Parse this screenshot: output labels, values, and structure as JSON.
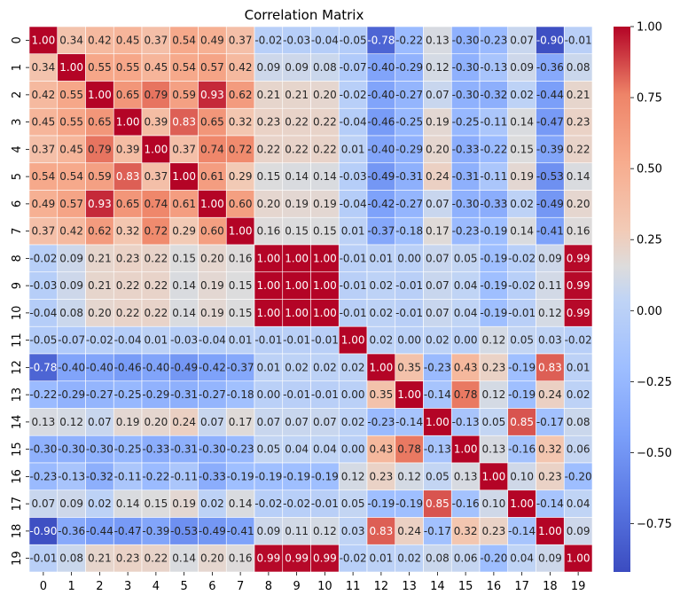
{
  "chart_data": {
    "type": "heatmap",
    "title": "Correlation Matrix",
    "xlabel": "",
    "ylabel": "",
    "labels": [
      "0",
      "1",
      "2",
      "3",
      "4",
      "5",
      "6",
      "7",
      "8",
      "9",
      "10",
      "11",
      "12",
      "13",
      "14",
      "15",
      "16",
      "17",
      "18",
      "19"
    ],
    "colormap": "coolwarm",
    "vmin": -0.92,
    "vmax": 1.0,
    "colorbar_ticks": [
      {
        "value": 1.0,
        "label": "1.00"
      },
      {
        "value": 0.75,
        "label": "0.75"
      },
      {
        "value": 0.5,
        "label": "0.50"
      },
      {
        "value": 0.25,
        "label": "0.25"
      },
      {
        "value": 0.0,
        "label": "0.00"
      },
      {
        "value": -0.25,
        "label": "−0.25"
      },
      {
        "value": -0.5,
        "label": "−0.50"
      },
      {
        "value": -0.75,
        "label": "−0.75"
      }
    ],
    "matrix": [
      [
        1.0,
        0.34,
        0.42,
        0.45,
        0.37,
        0.54,
        0.49,
        0.37,
        -0.02,
        -0.03,
        -0.04,
        -0.05,
        -0.78,
        -0.22,
        0.13,
        -0.3,
        -0.23,
        0.07,
        -0.9,
        -0.01
      ],
      [
        0.34,
        1.0,
        0.55,
        0.55,
        0.45,
        0.54,
        0.57,
        0.42,
        0.09,
        0.09,
        0.08,
        -0.07,
        -0.4,
        -0.29,
        0.12,
        -0.3,
        -0.13,
        0.09,
        -0.36,
        0.08
      ],
      [
        0.42,
        0.55,
        1.0,
        0.65,
        0.79,
        0.59,
        0.93,
        0.62,
        0.21,
        0.21,
        0.2,
        -0.02,
        -0.4,
        -0.27,
        0.07,
        -0.3,
        -0.32,
        0.02,
        -0.44,
        0.21
      ],
      [
        0.45,
        0.55,
        0.65,
        1.0,
        0.39,
        0.83,
        0.65,
        0.32,
        0.23,
        0.22,
        0.22,
        -0.04,
        -0.46,
        -0.25,
        0.19,
        -0.25,
        -0.11,
        0.14,
        -0.47,
        0.23
      ],
      [
        0.37,
        0.45,
        0.79,
        0.39,
        1.0,
        0.37,
        0.74,
        0.72,
        0.22,
        0.22,
        0.22,
        0.01,
        -0.4,
        -0.29,
        0.2,
        -0.33,
        -0.22,
        0.15,
        -0.39,
        0.22
      ],
      [
        0.54,
        0.54,
        0.59,
        0.83,
        0.37,
        1.0,
        0.61,
        0.29,
        0.15,
        0.14,
        0.14,
        -0.03,
        -0.49,
        -0.31,
        0.24,
        -0.31,
        -0.11,
        0.19,
        -0.53,
        0.14
      ],
      [
        0.49,
        0.57,
        0.93,
        0.65,
        0.74,
        0.61,
        1.0,
        0.6,
        0.2,
        0.19,
        0.19,
        -0.04,
        -0.42,
        -0.27,
        0.07,
        -0.3,
        -0.33,
        0.02,
        -0.49,
        0.2
      ],
      [
        0.37,
        0.42,
        0.62,
        0.32,
        0.72,
        0.29,
        0.6,
        1.0,
        0.16,
        0.15,
        0.15,
        0.01,
        -0.37,
        -0.18,
        0.17,
        -0.23,
        -0.19,
        0.14,
        -0.41,
        0.16
      ],
      [
        -0.02,
        0.09,
        0.21,
        0.23,
        0.22,
        0.15,
        0.2,
        0.16,
        1.0,
        1.0,
        1.0,
        -0.01,
        0.01,
        0.0,
        0.07,
        0.05,
        -0.19,
        -0.02,
        0.09,
        0.99
      ],
      [
        -0.03,
        0.09,
        0.21,
        0.22,
        0.22,
        0.14,
        0.19,
        0.15,
        1.0,
        1.0,
        1.0,
        -0.01,
        0.02,
        -0.01,
        0.07,
        0.04,
        -0.19,
        -0.02,
        0.11,
        0.99
      ],
      [
        -0.04,
        0.08,
        0.2,
        0.22,
        0.22,
        0.14,
        0.19,
        0.15,
        1.0,
        1.0,
        1.0,
        -0.01,
        0.02,
        -0.01,
        0.07,
        0.04,
        -0.19,
        -0.01,
        0.12,
        0.99
      ],
      [
        -0.05,
        -0.07,
        -0.02,
        -0.04,
        0.01,
        -0.03,
        -0.04,
        0.01,
        -0.01,
        -0.01,
        -0.01,
        1.0,
        0.02,
        -0.0,
        0.02,
        -0.0,
        0.12,
        0.05,
        0.03,
        -0.02
      ],
      [
        -0.78,
        -0.4,
        -0.4,
        -0.46,
        -0.4,
        -0.49,
        -0.42,
        -0.37,
        0.01,
        0.02,
        0.02,
        0.02,
        1.0,
        0.35,
        -0.23,
        0.43,
        0.23,
        -0.19,
        0.83,
        0.01
      ],
      [
        -0.22,
        -0.29,
        -0.27,
        -0.25,
        -0.29,
        -0.31,
        -0.27,
        -0.18,
        0.0,
        -0.01,
        -0.01,
        -0.0,
        0.35,
        1.0,
        -0.14,
        0.78,
        0.12,
        -0.19,
        0.24,
        0.02
      ],
      [
        0.13,
        0.12,
        0.07,
        0.19,
        0.2,
        0.24,
        0.07,
        0.17,
        0.07,
        0.07,
        0.07,
        0.02,
        -0.23,
        -0.14,
        1.0,
        -0.13,
        0.05,
        0.85,
        -0.17,
        0.08
      ],
      [
        -0.3,
        -0.3,
        -0.3,
        -0.25,
        -0.33,
        -0.31,
        -0.3,
        -0.23,
        0.05,
        0.04,
        0.04,
        -0.0,
        0.43,
        0.78,
        -0.13,
        1.0,
        0.13,
        -0.16,
        0.32,
        0.06
      ],
      [
        -0.23,
        -0.13,
        -0.32,
        -0.11,
        -0.22,
        -0.11,
        -0.33,
        -0.19,
        -0.19,
        -0.19,
        -0.19,
        0.12,
        0.23,
        0.12,
        0.05,
        0.13,
        1.0,
        0.1,
        0.23,
        -0.2
      ],
      [
        0.07,
        0.09,
        0.02,
        0.14,
        0.15,
        0.19,
        0.02,
        0.14,
        -0.02,
        -0.02,
        -0.01,
        0.05,
        -0.19,
        -0.19,
        0.85,
        -0.16,
        0.1,
        1.0,
        -0.14,
        0.04
      ],
      [
        -0.9,
        -0.36,
        -0.44,
        -0.47,
        -0.39,
        -0.53,
        -0.49,
        -0.41,
        0.09,
        0.11,
        0.12,
        0.03,
        0.83,
        0.24,
        -0.17,
        0.32,
        0.23,
        -0.14,
        1.0,
        0.09
      ],
      [
        -0.01,
        0.08,
        0.21,
        0.23,
        0.22,
        0.14,
        0.2,
        0.16,
        0.99,
        0.99,
        0.99,
        -0.02,
        0.01,
        0.02,
        0.08,
        0.06,
        -0.2,
        0.04,
        0.09,
        1.0
      ]
    ]
  }
}
